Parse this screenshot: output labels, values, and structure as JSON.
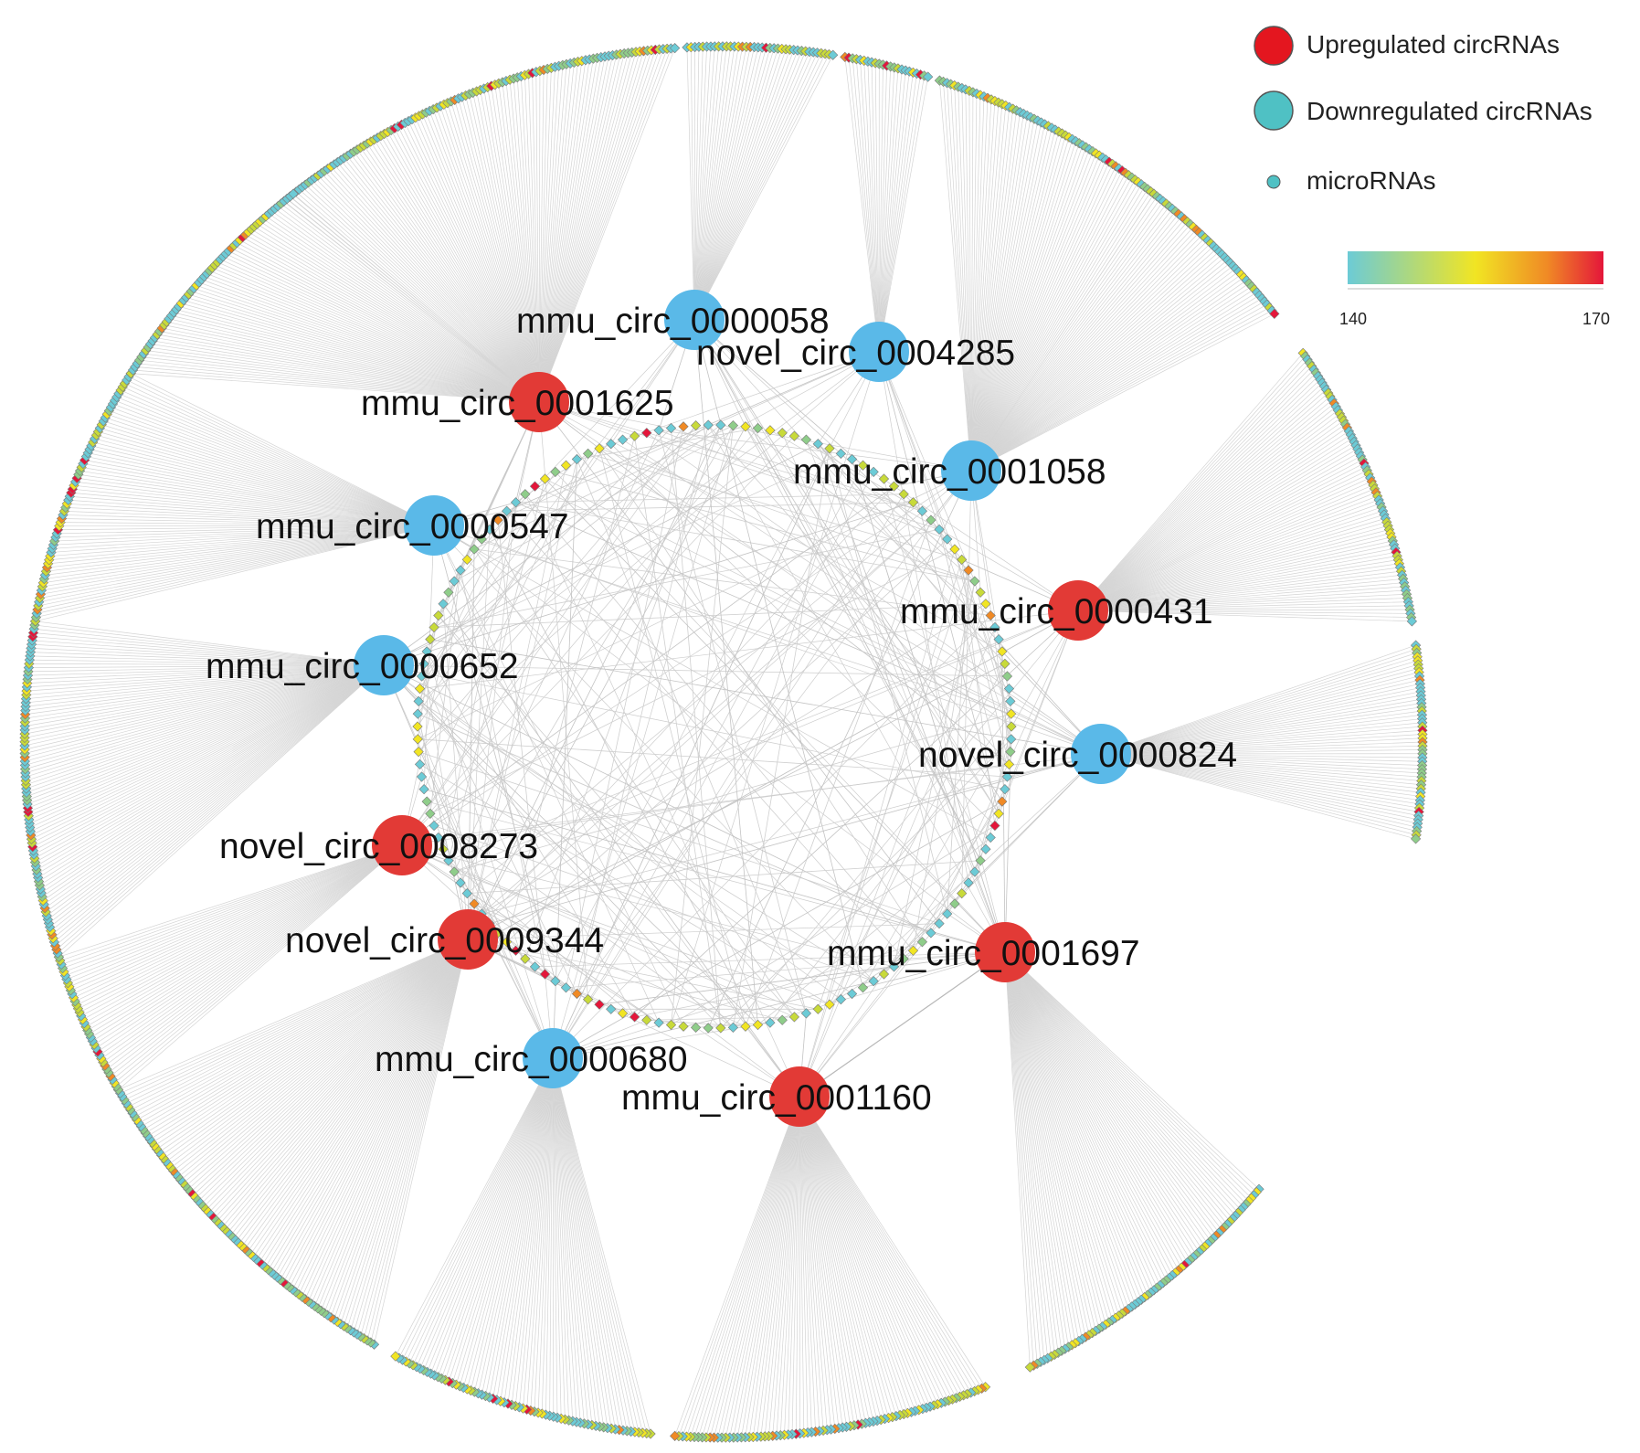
{
  "colors": {
    "up": "#e23a36",
    "down": "#5ab9e8",
    "edge": "#c8c8c8",
    "legend_down": "#4fc1c4",
    "scale_low": "#6ccbd6",
    "scale_mid": "#f1e523",
    "scale_high": "#e4163a"
  },
  "legend": {
    "up_label": "Upregulated circRNAs",
    "down_label": "Downregulated circRNAs",
    "mirna_label": "microRNAs",
    "scale_min": "140",
    "scale_max": "170"
  },
  "circ_nodes": [
    {
      "id": "mmu_circ_0000058",
      "label": "mmu_circ_0000058",
      "reg": "down"
    },
    {
      "id": "novel_circ_0004285",
      "label": "novel_circ_0004285",
      "reg": "down"
    },
    {
      "id": "mmu_circ_0001625",
      "label": "mmu_circ_0001625",
      "reg": "up"
    },
    {
      "id": "mmu_circ_0001058",
      "label": "mmu_circ_0001058",
      "reg": "down"
    },
    {
      "id": "mmu_circ_0000547",
      "label": "mmu_circ_0000547",
      "reg": "down"
    },
    {
      "id": "mmu_circ_0000431",
      "label": "mmu_circ_0000431",
      "reg": "up"
    },
    {
      "id": "mmu_circ_0000652",
      "label": "mmu_circ_0000652",
      "reg": "down"
    },
    {
      "id": "novel_circ_0000824",
      "label": "novel_circ_0000824",
      "reg": "down"
    },
    {
      "id": "novel_circ_0008273",
      "label": "novel_circ_0008273",
      "reg": "up"
    },
    {
      "id": "novel_circ_0009344",
      "label": "novel_circ_0009344",
      "reg": "up"
    },
    {
      "id": "mmu_circ_0001697",
      "label": "mmu_circ_0001697",
      "reg": "up"
    },
    {
      "id": "mmu_circ_0000680",
      "label": "mmu_circ_0000680",
      "reg": "down"
    },
    {
      "id": "mmu_circ_0001160",
      "label": "mmu_circ_0001160",
      "reg": "up"
    }
  ]
}
